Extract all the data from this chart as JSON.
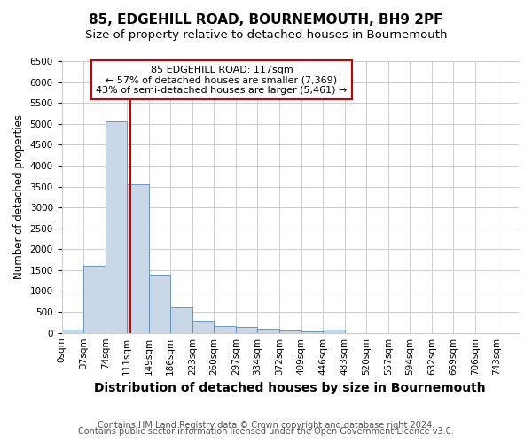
{
  "title": "85, EDGEHILL ROAD, BOURNEMOUTH, BH9 2PF",
  "subtitle": "Size of property relative to detached houses in Bournemouth",
  "xlabel": "Distribution of detached houses by size in Bournemouth",
  "ylabel": "Number of detached properties",
  "footnote1": "Contains HM Land Registry data © Crown copyright and database right 2024.",
  "footnote2": "Contains public sector information licensed under the Open Government Licence v3.0.",
  "bin_labels": [
    "0sqm",
    "37sqm",
    "74sqm",
    "111sqm",
    "149sqm",
    "186sqm",
    "223sqm",
    "260sqm",
    "297sqm",
    "334sqm",
    "372sqm",
    "409sqm",
    "446sqm",
    "483sqm",
    "520sqm",
    "557sqm",
    "594sqm",
    "632sqm",
    "669sqm",
    "706sqm",
    "743sqm"
  ],
  "bin_edges": [
    0,
    37,
    74,
    111,
    148,
    185,
    222,
    259,
    296,
    333,
    370,
    407,
    444,
    481,
    518,
    555,
    592,
    629,
    666,
    703,
    740,
    777
  ],
  "bar_heights": [
    80,
    1600,
    5050,
    3550,
    1400,
    600,
    300,
    160,
    140,
    100,
    50,
    40,
    70,
    0,
    0,
    0,
    0,
    0,
    0,
    0,
    0
  ],
  "bar_color": "#c8d8e8",
  "bar_edge_color": "#5a8ab0",
  "red_line_x": 117,
  "annotation_line1": "85 EDGEHILL ROAD: 117sqm",
  "annotation_line2": "← 57% of detached houses are smaller (7,369)",
  "annotation_line3": "43% of semi-detached houses are larger (5,461) →",
  "annotation_box_color": "#ffffff",
  "annotation_border_color": "#cc0000",
  "red_line_color": "#cc0000",
  "ylim": [
    0,
    6500
  ],
  "yticks": [
    0,
    500,
    1000,
    1500,
    2000,
    2500,
    3000,
    3500,
    4000,
    4500,
    5000,
    5500,
    6000,
    6500
  ],
  "grid_color": "#cccccc",
  "background_color": "#ffffff",
  "title_fontsize": 11,
  "subtitle_fontsize": 9.5,
  "xlabel_fontsize": 10,
  "ylabel_fontsize": 8.5,
  "tick_fontsize": 7.5,
  "annotation_fontsize": 8,
  "footnote_fontsize": 7
}
